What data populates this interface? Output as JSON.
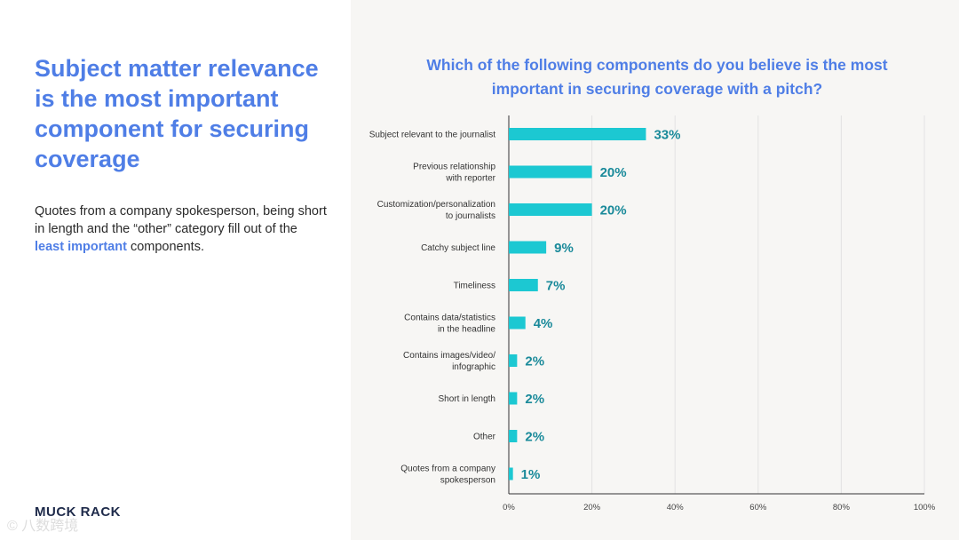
{
  "slide": {
    "headline": "Subject matter relevance is the most important component for securing coverage",
    "body_prefix": "Quotes from a company spokesperson, being short in length and the “other” category fill out of the ",
    "body_highlight": "least important",
    "body_suffix": " components.",
    "logo_text": "MUCK RACK",
    "watermark_text": "© 八数跨境"
  },
  "colors": {
    "accent": "#4f7ee6",
    "bar": "#1cc8d2",
    "value_text": "#1a8a9a"
  },
  "chart_data": {
    "type": "bar",
    "orientation": "horizontal",
    "title": "Which of the following components do you believe is the most important in securing coverage with a pitch?",
    "categories": [
      [
        "Subject relevant to the journalist"
      ],
      [
        "Previous relationship",
        "with reporter"
      ],
      [
        "Customization/personalization",
        "to journalists"
      ],
      [
        "Catchy subject line"
      ],
      [
        "Timeliness"
      ],
      [
        "Contains data/statistics",
        "in the headline"
      ],
      [
        "Contains images/video/",
        "infographic"
      ],
      [
        "Short in length"
      ],
      [
        "Other"
      ],
      [
        "Quotes from a company",
        "spokesperson"
      ]
    ],
    "values": [
      33,
      20,
      20,
      9,
      7,
      4,
      2,
      2,
      2,
      1
    ],
    "value_labels": [
      "33%",
      "20%",
      "20%",
      "9%",
      "7%",
      "4%",
      "2%",
      "2%",
      "2%",
      "1%"
    ],
    "xlim": [
      0,
      100
    ],
    "xticks": [
      0,
      20,
      40,
      60,
      80,
      100
    ],
    "xtick_labels": [
      "0%",
      "20%",
      "40%",
      "60%",
      "80%",
      "100%"
    ],
    "grid": true,
    "xlabel": "",
    "ylabel": ""
  }
}
